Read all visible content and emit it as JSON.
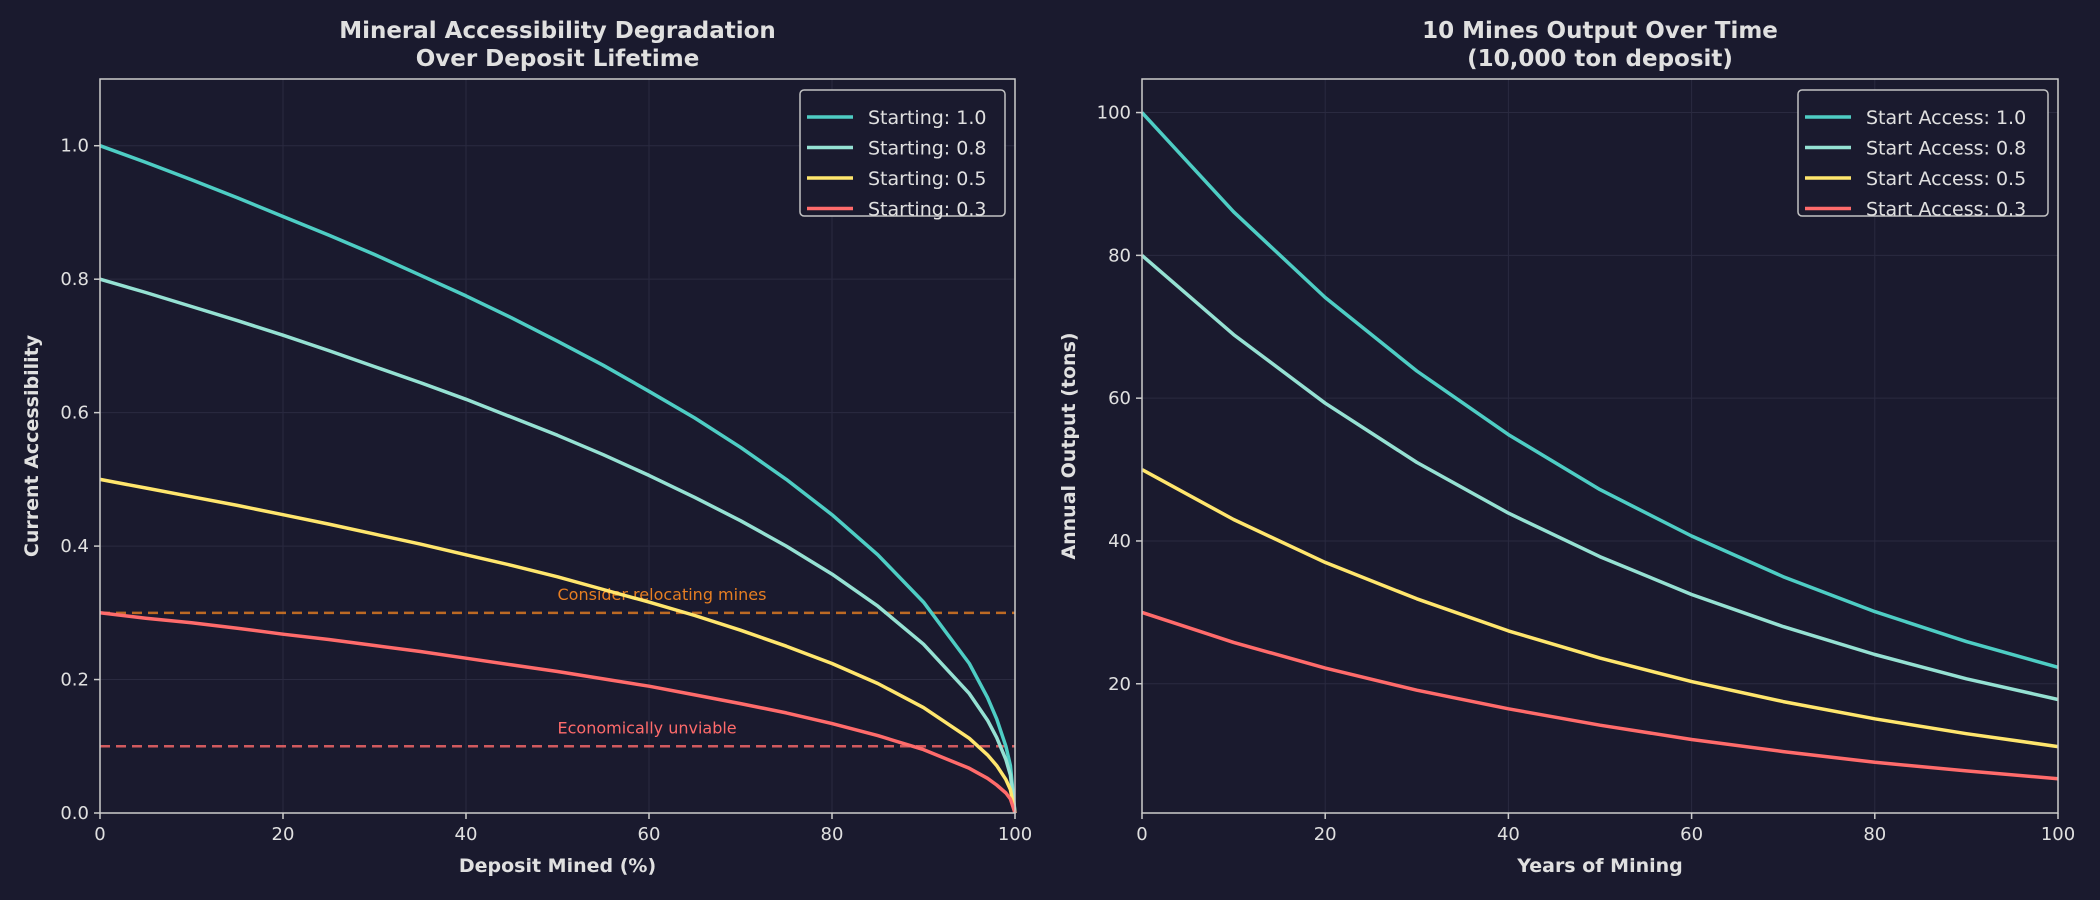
{
  "chart_data": [
    {
      "type": "line",
      "title_lines": [
        "Mineral Accessibility Degradation",
        "Over Deposit Lifetime"
      ],
      "xlabel": "Deposit Mined (%)",
      "ylabel": "Current Accessibility",
      "xlim": [
        0,
        100
      ],
      "ylim": [
        0,
        1.1
      ],
      "xticks": [
        0,
        20,
        40,
        60,
        80,
        100
      ],
      "yticks": [
        0.0,
        0.2,
        0.4,
        0.6,
        0.8,
        1.0
      ],
      "ytick_labels": [
        "0.0",
        "0.2",
        "0.4",
        "0.6",
        "0.8",
        "1.0"
      ],
      "grid": true,
      "legend_placement": "top-right",
      "x": [
        0,
        5,
        10,
        15,
        20,
        25,
        30,
        35,
        40,
        45,
        50,
        55,
        60,
        65,
        70,
        75,
        80,
        85,
        90,
        95,
        97,
        98,
        99,
        99.5,
        100
      ],
      "series": [
        {
          "name": "Starting: 1.0",
          "color": "#4ecdc4",
          "values": [
            1,
            0.975,
            0.949,
            0.922,
            0.894,
            0.866,
            0.837,
            0.806,
            0.775,
            0.742,
            0.707,
            0.671,
            0.632,
            0.592,
            0.548,
            0.5,
            0.447,
            0.387,
            0.316,
            0.224,
            0.173,
            0.141,
            0.1,
            0.071,
            0
          ]
        },
        {
          "name": "Starting: 0.8",
          "color": "#95e1d3",
          "values": [
            0.8,
            0.78,
            0.759,
            0.738,
            0.716,
            0.693,
            0.669,
            0.645,
            0.62,
            0.593,
            0.566,
            0.537,
            0.506,
            0.473,
            0.438,
            0.4,
            0.358,
            0.31,
            0.253,
            0.179,
            0.139,
            0.113,
            0.08,
            0.057,
            0
          ]
        },
        {
          "name": "Starting: 0.5",
          "color": "#ffe66d",
          "values": [
            0.5,
            0.487,
            0.474,
            0.461,
            0.447,
            0.433,
            0.418,
            0.403,
            0.387,
            0.371,
            0.354,
            0.335,
            0.316,
            0.296,
            0.274,
            0.25,
            0.224,
            0.194,
            0.158,
            0.112,
            0.087,
            0.071,
            0.05,
            0.035,
            0
          ]
        },
        {
          "name": "Starting: 0.3",
          "color": "#ff6b6b",
          "values": [
            0.3,
            0.292,
            0.285,
            0.277,
            0.268,
            0.26,
            0.251,
            0.242,
            0.232,
            0.222,
            0.212,
            0.201,
            0.19,
            0.177,
            0.164,
            0.15,
            0.134,
            0.116,
            0.095,
            0.067,
            0.052,
            0.042,
            0.03,
            0.021,
            0
          ]
        }
      ],
      "reference_lines": [
        {
          "y": 0.3,
          "label": "Consider relocating mines",
          "label_x": 50,
          "color": "#e67e22",
          "style": "dashed"
        },
        {
          "y": 0.1,
          "label": "Economically unviable",
          "label_x": 50,
          "color": "#ff6b6b",
          "style": "dashed"
        }
      ]
    },
    {
      "type": "line",
      "title_lines": [
        "10 Mines Output Over Time",
        "(10,000 ton deposit)"
      ],
      "xlabel": "Years of Mining",
      "ylabel": "Annual Output (tons)",
      "xlim": [
        0,
        100
      ],
      "ylim": [
        1.9,
        104.7
      ],
      "xticks": [
        0,
        20,
        40,
        60,
        80,
        100
      ],
      "yticks": [
        20,
        40,
        60,
        80,
        100
      ],
      "ytick_labels": [
        "20",
        "40",
        "60",
        "80",
        "100"
      ],
      "grid": true,
      "legend_placement": "top-right",
      "x": [
        0,
        10,
        20,
        30,
        40,
        50,
        60,
        70,
        80,
        90,
        100
      ],
      "series": [
        {
          "name": "Start Access: 1.0",
          "color": "#4ecdc4",
          "values": [
            100,
            86.1,
            74.1,
            63.8,
            54.9,
            47.2,
            40.7,
            35.0,
            30.1,
            25.9,
            22.3
          ]
        },
        {
          "name": "Start Access: 0.8",
          "color": "#95e1d3",
          "values": [
            80,
            68.9,
            59.3,
            51.0,
            43.9,
            37.8,
            32.5,
            28.0,
            24.1,
            20.7,
            17.8
          ]
        },
        {
          "name": "Start Access: 0.5",
          "color": "#ffe66d",
          "values": [
            50,
            43.0,
            37.0,
            31.9,
            27.4,
            23.6,
            20.3,
            17.5,
            15.1,
            13.0,
            11.2
          ]
        },
        {
          "name": "Start Access: 0.3",
          "color": "#ff6b6b",
          "values": [
            30,
            25.8,
            22.2,
            19.1,
            16.5,
            14.2,
            12.2,
            10.5,
            9.0,
            7.8,
            6.7
          ]
        }
      ],
      "reference_lines": []
    }
  ]
}
